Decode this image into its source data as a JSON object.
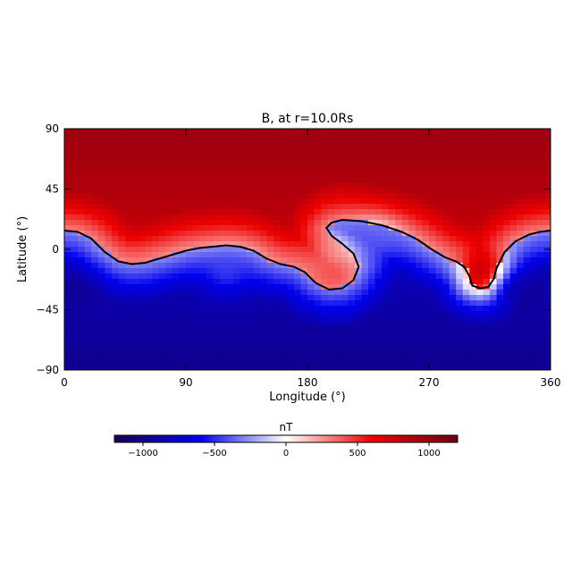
{
  "chart_data": {
    "type": "heatmap",
    "title": "B, at r=10.0Rs",
    "xlabel": "Longitude (°)",
    "ylabel": "Latitude (°)",
    "xlim": [
      0,
      360
    ],
    "ylim": [
      -90,
      90
    ],
    "x_ticks": [
      0,
      90,
      180,
      270,
      360
    ],
    "y_ticks": [
      90,
      45,
      0,
      -45,
      -90
    ],
    "y_tick_labels": [
      "90",
      "45",
      "0",
      "−45",
      "−90"
    ],
    "neutral_line": {
      "label": "",
      "color": "#000000",
      "points": [
        [
          0,
          14
        ],
        [
          10,
          13
        ],
        [
          20,
          8
        ],
        [
          30,
          -2
        ],
        [
          40,
          -9
        ],
        [
          50,
          -11
        ],
        [
          60,
          -10
        ],
        [
          70,
          -7
        ],
        [
          80,
          -4
        ],
        [
          90,
          -1
        ],
        [
          100,
          1
        ],
        [
          110,
          2
        ],
        [
          120,
          3
        ],
        [
          130,
          2
        ],
        [
          140,
          -1
        ],
        [
          150,
          -7
        ],
        [
          160,
          -11
        ],
        [
          170,
          -13
        ],
        [
          178,
          -17
        ],
        [
          186,
          -25
        ],
        [
          196,
          -30
        ],
        [
          206,
          -29
        ],
        [
          214,
          -23
        ],
        [
          218,
          -13
        ],
        [
          214,
          -3
        ],
        [
          206,
          4
        ],
        [
          198,
          10
        ],
        [
          194,
          16
        ],
        [
          198,
          20
        ],
        [
          206,
          22
        ],
        [
          220,
          21
        ],
        [
          235,
          18
        ],
        [
          250,
          13
        ],
        [
          262,
          7
        ],
        [
          272,
          0
        ],
        [
          282,
          -6
        ],
        [
          290,
          -9
        ],
        [
          296,
          -13
        ],
        [
          300,
          -20
        ],
        [
          302,
          -27
        ],
        [
          308,
          -29
        ],
        [
          314,
          -28
        ],
        [
          318,
          -22
        ],
        [
          320,
          -14
        ],
        [
          326,
          -2
        ],
        [
          334,
          6
        ],
        [
          344,
          11
        ],
        [
          352,
          13
        ],
        [
          360,
          14
        ]
      ]
    },
    "field_features": [
      {
        "lon": 311,
        "lat": -18,
        "value": 1050
      },
      {
        "lon": 200,
        "lat": -5,
        "value": 200
      },
      {
        "lon": 335,
        "lat": -30,
        "value": -1050
      },
      {
        "lon": 10,
        "lat": -30,
        "value": -1000
      },
      {
        "lon": 120,
        "lat": -20,
        "value": -350
      },
      {
        "lon": 230,
        "lat": 5,
        "value": -350
      }
    ],
    "colorbar": {
      "label": "nT",
      "range": [
        -1200,
        1200
      ],
      "ticks": [
        -1000,
        -500,
        0,
        500,
        1000
      ],
      "tick_labels": [
        "−1000",
        "−500",
        "0",
        "500",
        "1000"
      ],
      "colors": [
        "#1a0055",
        "#0000ee",
        "#ffffff",
        "#ee0000",
        "#6a0018"
      ]
    }
  }
}
